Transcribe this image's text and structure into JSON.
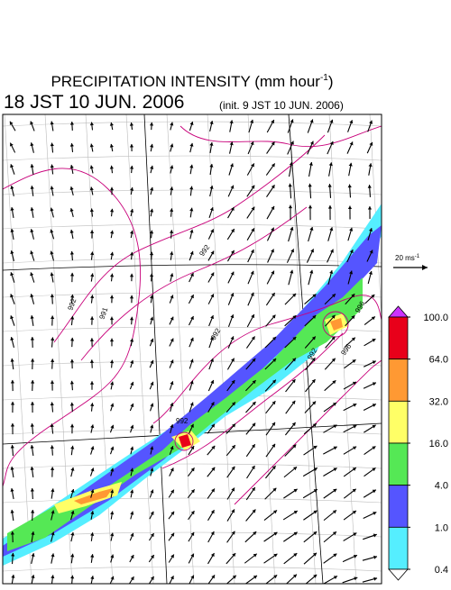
{
  "header": {
    "title": {
      "text": "PRECIPITATION INTENSITY (mm hour",
      "sup": "-1",
      "close": ")"
    },
    "valid_time": "18 JST 10 JUN. 2006",
    "init_time": "(init. 9 JST 10 JUN. 2006)"
  },
  "reference_vector": {
    "text": "20 ms",
    "sup": "-1"
  },
  "colorbar": {
    "levels": [
      {
        "value": 100,
        "label": "100.0"
      },
      {
        "value": 64,
        "label": "64.0"
      },
      {
        "value": 32,
        "label": "32.0"
      },
      {
        "value": 16,
        "label": "16.0"
      },
      {
        "value": 4,
        "label": "4.0"
      },
      {
        "value": 1,
        "label": "1.0"
      },
      {
        "value": 0.4,
        "label": "0.4"
      }
    ],
    "colors": [
      "#cc33ff",
      "#e8001a",
      "#ff9933",
      "#ffff66",
      "#55e855",
      "#5555ff",
      "#55eeff",
      "#ffffff"
    ]
  },
  "contour_labels": [
    "992",
    "992",
    "991",
    "992",
    "992",
    "992",
    "996",
    "996"
  ]
}
